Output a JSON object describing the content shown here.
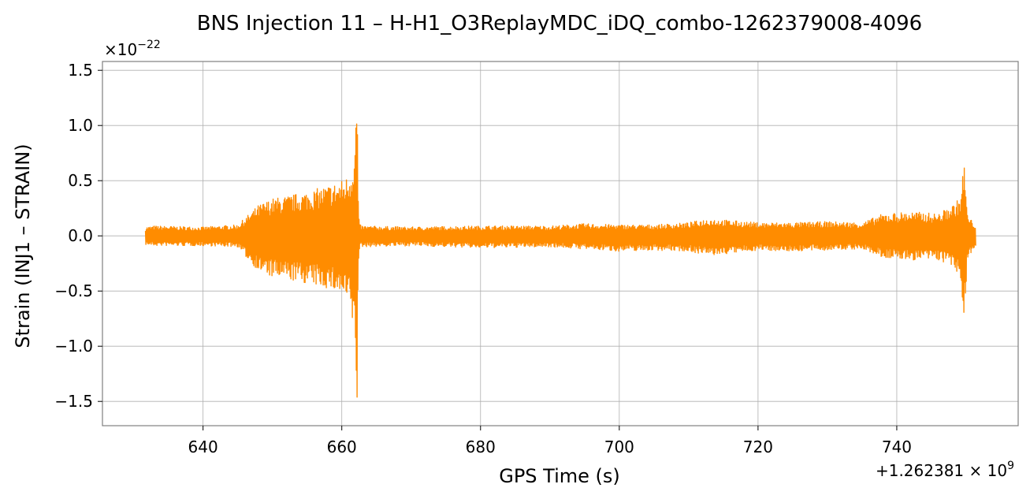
{
  "chart_data": {
    "type": "line",
    "title": "BNS Injection 11 – H-H1_O3ReplayMDC_iDQ_combo-1262379008-4096",
    "xlabel": "GPS Time (s)",
    "ylabel": "Strain (INJ1 – STRAIN)",
    "x_offset_label": "+1.262381 × 10",
    "x_offset_exponent": "9",
    "y_scale_label": "×10",
    "y_scale_exponent": "−22",
    "xlim": [
      625.5,
      757.5
    ],
    "ylim": [
      -1.72,
      1.58
    ],
    "x_ticks": [
      640,
      660,
      680,
      700,
      720,
      740
    ],
    "x_tick_labels": [
      "640",
      "660",
      "680",
      "700",
      "720",
      "740"
    ],
    "y_ticks": [
      -1.5,
      -1.0,
      -0.5,
      0.0,
      0.5,
      1.0,
      1.5
    ],
    "y_tick_labels": [
      "−1.5",
      "−1.0",
      "−0.5",
      "0.0",
      "0.5",
      "1.0",
      "1.5"
    ],
    "grid": true,
    "line_color": "#ff8c00",
    "envelope_x": [
      631.7,
      633,
      640,
      645,
      646,
      648,
      650,
      652,
      654,
      656,
      658,
      659.5,
      660.5,
      661.3,
      661.9,
      662.2,
      662.4,
      662.6,
      663,
      670,
      680,
      690,
      695,
      700,
      705,
      710,
      713,
      716,
      720,
      725,
      730,
      735,
      738,
      742,
      746,
      748,
      749.2,
      749.7,
      750.2,
      751.4
    ],
    "envelope_upper": [
      0.08,
      0.09,
      0.08,
      0.1,
      0.16,
      0.28,
      0.34,
      0.36,
      0.39,
      0.42,
      0.46,
      0.49,
      0.52,
      0.6,
      0.85,
      1.42,
      0.2,
      0.1,
      0.09,
      0.08,
      0.09,
      0.09,
      0.11,
      0.1,
      0.1,
      0.12,
      0.16,
      0.14,
      0.12,
      0.12,
      0.13,
      0.12,
      0.2,
      0.22,
      0.2,
      0.28,
      0.35,
      0.7,
      0.18,
      0.1
    ],
    "envelope_lower": [
      -0.08,
      -0.09,
      -0.09,
      -0.1,
      -0.18,
      -0.32,
      -0.38,
      -0.4,
      -0.42,
      -0.45,
      -0.48,
      -0.52,
      -0.58,
      -0.68,
      -1.0,
      -1.56,
      -0.25,
      -0.1,
      -0.1,
      -0.09,
      -0.11,
      -0.1,
      -0.12,
      -0.14,
      -0.13,
      -0.14,
      -0.18,
      -0.16,
      -0.13,
      -0.14,
      -0.13,
      -0.12,
      -0.2,
      -0.22,
      -0.22,
      -0.28,
      -0.4,
      -0.79,
      -0.2,
      -0.1
    ]
  }
}
